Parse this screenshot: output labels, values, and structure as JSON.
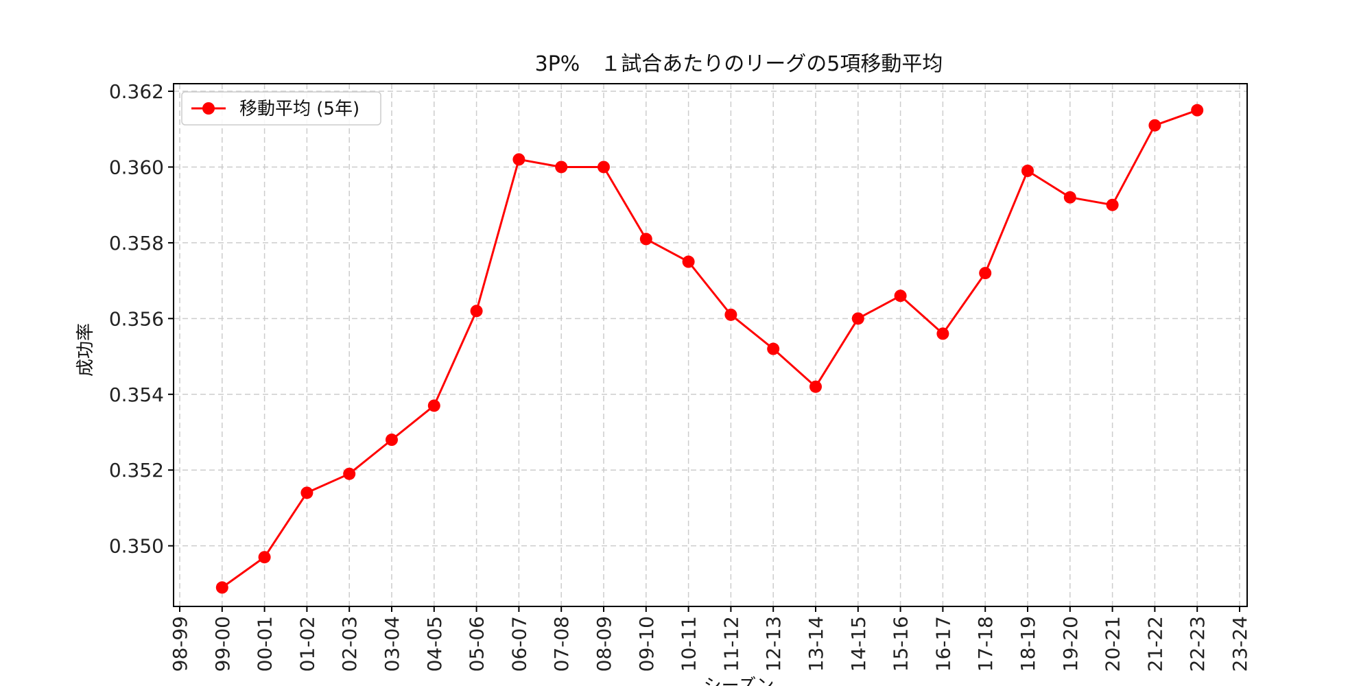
{
  "chart_data": {
    "type": "line",
    "title": "3P%　１試合あたりのリーグの5項移動平均",
    "xlabel": "シーズン",
    "ylabel": "成功率",
    "x_ticks": [
      "98-99",
      "99-00",
      "00-01",
      "01-02",
      "02-03",
      "03-04",
      "04-05",
      "05-06",
      "06-07",
      "07-08",
      "08-09",
      "09-10",
      "10-11",
      "11-12",
      "12-13",
      "13-14",
      "14-15",
      "15-16",
      "16-17",
      "17-18",
      "18-19",
      "19-20",
      "20-21",
      "21-22",
      "22-23",
      "23-24"
    ],
    "y_ticks": [
      "0.350",
      "0.352",
      "0.354",
      "0.356",
      "0.358",
      "0.360",
      "0.362"
    ],
    "ylim": [
      0.3484,
      0.3622
    ],
    "grid": true,
    "legend_position": "top-left",
    "series": [
      {
        "name": "移動平均 (5年)",
        "color": "#ff0000",
        "marker": "circle",
        "x": [
          "99-00",
          "00-01",
          "01-02",
          "02-03",
          "03-04",
          "04-05",
          "05-06",
          "06-07",
          "07-08",
          "08-09",
          "09-10",
          "10-11",
          "11-12",
          "12-13",
          "13-14",
          "14-15",
          "15-16",
          "16-17",
          "17-18",
          "18-19",
          "19-20",
          "20-21",
          "21-22",
          "22-23"
        ],
        "values": [
          0.3489,
          0.3497,
          0.3514,
          0.3519,
          0.3528,
          0.3537,
          0.3562,
          0.3602,
          0.36,
          0.36,
          0.3581,
          0.3575,
          0.3561,
          0.3552,
          0.3542,
          0.356,
          0.3566,
          0.3556,
          0.3572,
          0.3599,
          0.3592,
          0.359,
          0.3611,
          0.3615
        ]
      }
    ]
  }
}
